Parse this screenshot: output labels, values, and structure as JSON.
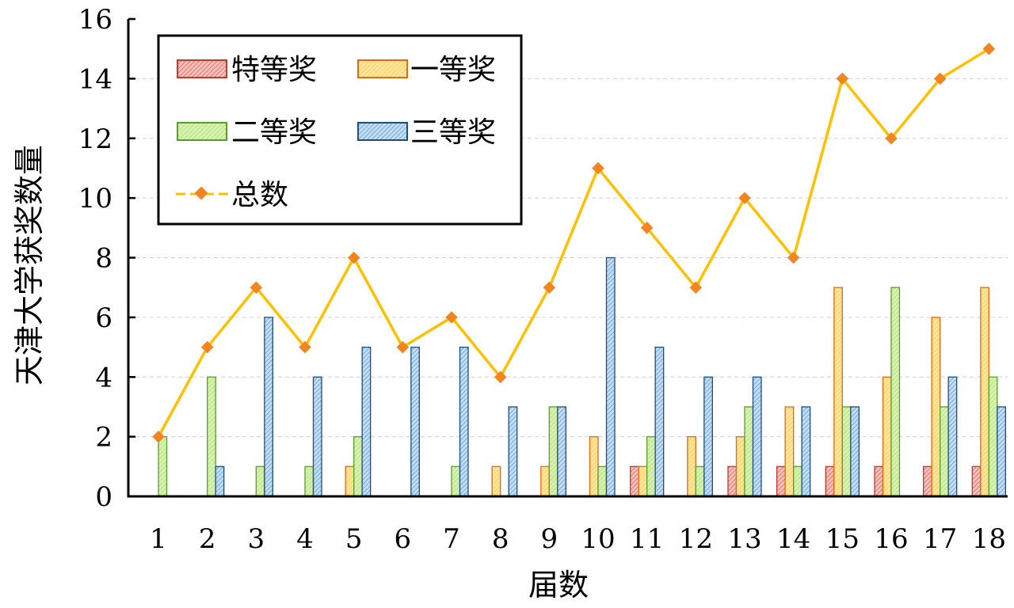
{
  "chart_data": {
    "type": "bar",
    "title": "",
    "xlabel": "届数",
    "ylabel": "天津大学获奖数量",
    "ylim": [
      0,
      16
    ],
    "yticks": [
      0,
      2,
      4,
      6,
      8,
      10,
      12,
      14,
      16
    ],
    "categories": [
      "1",
      "2",
      "3",
      "4",
      "5",
      "6",
      "7",
      "8",
      "9",
      "10",
      "11",
      "12",
      "13",
      "14",
      "15",
      "16",
      "17",
      "18"
    ],
    "grid": "horizontal dashed",
    "legend_position": "top-left",
    "series": [
      {
        "name": "特等奖",
        "kind": "bar",
        "fill": "#f4b0a8",
        "stroke": "#c0392b",
        "values": [
          0,
          0,
          0,
          0,
          0,
          0,
          0,
          0,
          0,
          0,
          1,
          0,
          1,
          1,
          1,
          1,
          1,
          1
        ]
      },
      {
        "name": "一等奖",
        "kind": "bar",
        "fill": "#ffd980",
        "stroke": "#e06a10",
        "values": [
          0,
          0,
          0,
          0,
          1,
          0,
          0,
          1,
          1,
          2,
          1,
          2,
          2,
          3,
          7,
          4,
          6,
          7
        ]
      },
      {
        "name": "二等奖",
        "kind": "bar",
        "fill": "#c9ec9a",
        "stroke": "#5a9e2a",
        "values": [
          2,
          4,
          1,
          1,
          2,
          0,
          1,
          0,
          3,
          1,
          2,
          1,
          3,
          1,
          3,
          7,
          3,
          4
        ]
      },
      {
        "name": "三等奖",
        "kind": "bar",
        "fill": "#a9cdf0",
        "stroke": "#1f4e79",
        "values": [
          0,
          1,
          6,
          4,
          5,
          5,
          5,
          3,
          3,
          8,
          5,
          4,
          4,
          3,
          3,
          0,
          4,
          3
        ]
      },
      {
        "name": "总数",
        "kind": "line",
        "line_color": "#ffc000",
        "marker_color": "#f28522",
        "values": [
          2,
          5,
          7,
          5,
          8,
          5,
          6,
          4,
          7,
          11,
          9,
          7,
          10,
          8,
          14,
          12,
          14,
          15
        ]
      }
    ]
  }
}
